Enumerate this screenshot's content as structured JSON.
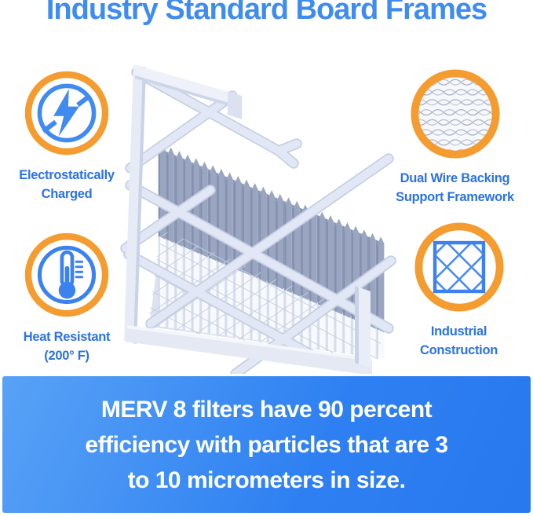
{
  "title": "Industry Standard Board Frames",
  "features": [
    {
      "id": "electrostatic",
      "icon": "lightning-icon",
      "label_lines": [
        "Electrostatically",
        "Charged"
      ]
    },
    {
      "id": "wire-backing",
      "icon": "wire-mesh-icon",
      "label_lines": [
        "Dual Wire Backing",
        "Support Framework"
      ]
    },
    {
      "id": "heat-resistant",
      "icon": "thermometer-icon",
      "label_lines": [
        "Heat Resistant",
        "(200° F)"
      ]
    },
    {
      "id": "industrial-construction",
      "icon": "lattice-grid-icon",
      "label_lines": [
        "Industrial",
        "Construction"
      ]
    }
  ],
  "banner": {
    "lines": [
      "MERV 8 filters have 90 percent",
      "efficiency with particles that are 3",
      "to 10 micrometers in size."
    ]
  },
  "colors": {
    "title_blue": "#3E8CF0",
    "label_blue": "#2B72E4",
    "icon_blue": "#3B82EE",
    "ring_orange": "#F49C2F",
    "banner_blue_start": "#58A2F6",
    "banner_blue_end": "#2878EE",
    "banner_text": "#FFFFFF"
  }
}
